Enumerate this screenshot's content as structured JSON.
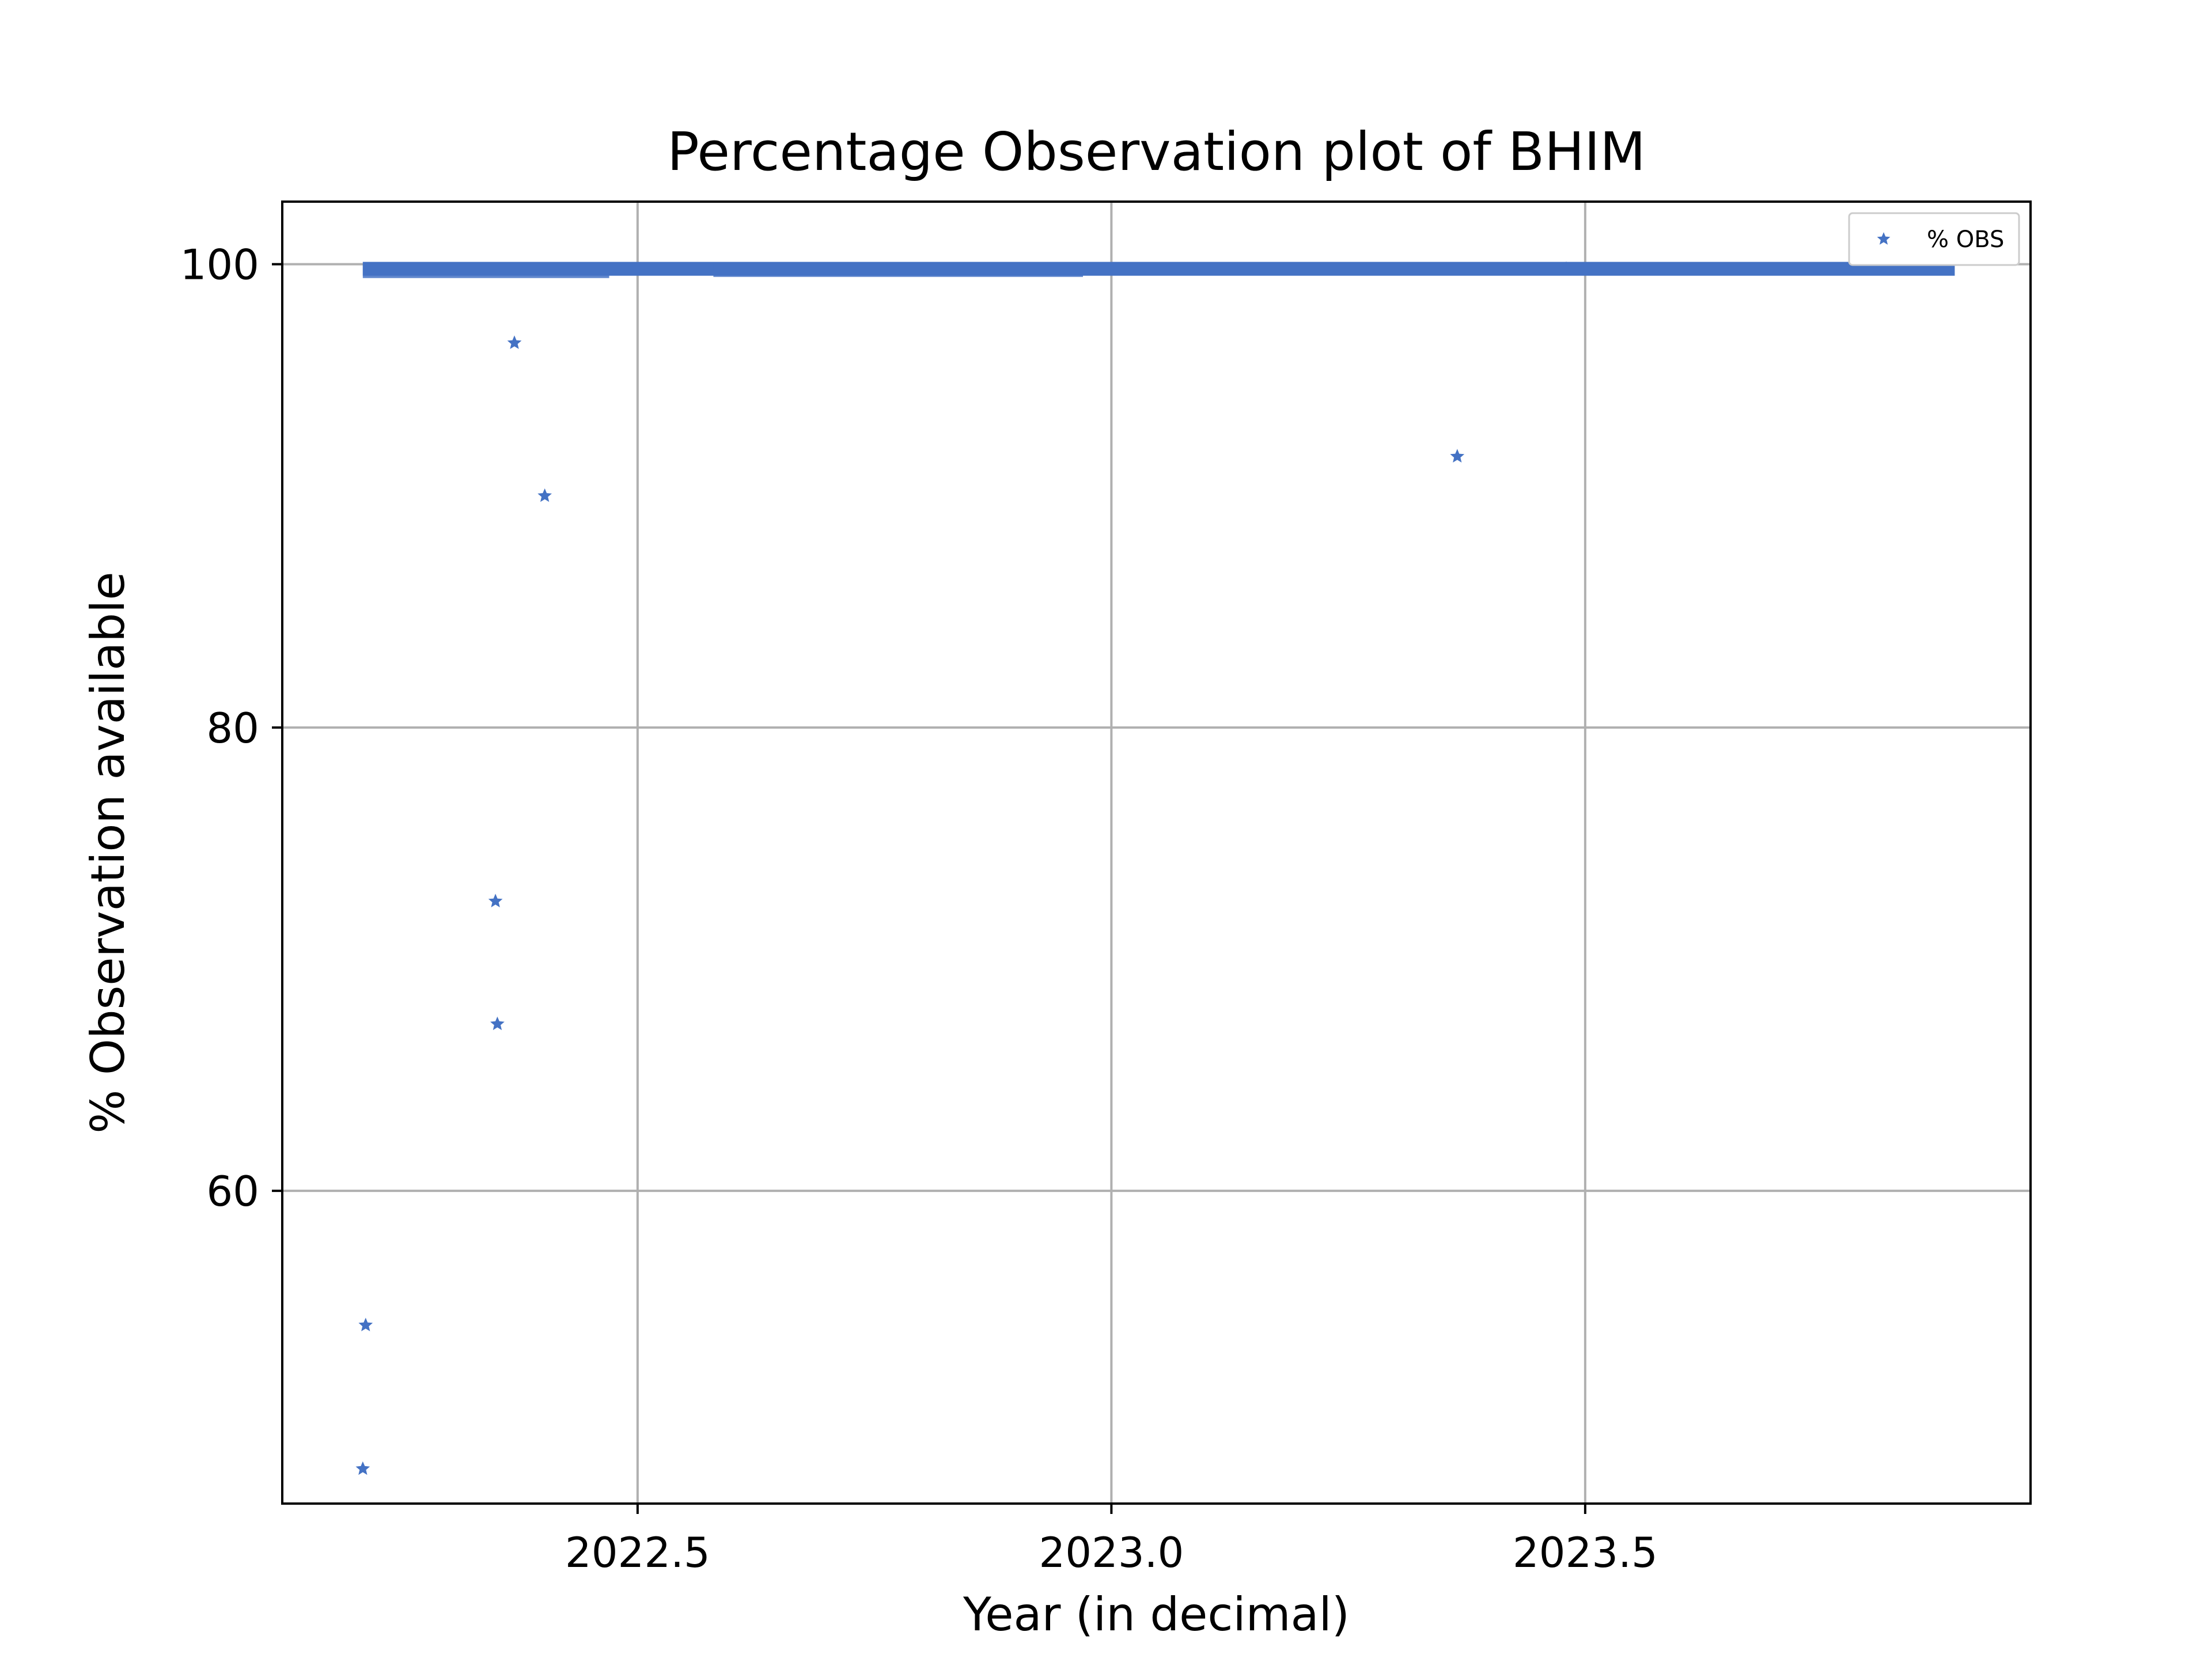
{
  "chart_data": {
    "type": "scatter",
    "title": "Percentage Observation plot of BHIM",
    "xlabel": "Year (in decimal)",
    "ylabel": "% Observation available",
    "xlim": [
      2022.125,
      2023.97
    ],
    "ylim": [
      46.5,
      102.7
    ],
    "xticks": [
      2022.5,
      2023.0,
      2023.5
    ],
    "xtick_labels": [
      "2022.5",
      "2023.0",
      "2023.5"
    ],
    "yticks": [
      60,
      80,
      100
    ],
    "ytick_labels": [
      "60",
      "80",
      "100"
    ],
    "grid": true,
    "legend": {
      "position": "top-right",
      "entries": [
        "% OBS"
      ]
    },
    "colors": {
      "series": "#4472c4",
      "grid": "#b0b0b0",
      "axes": "#000000"
    },
    "marker": "star",
    "series": [
      {
        "name": "% OBS",
        "dense_band": {
          "x_range": [
            2022.21,
            2023.89
          ],
          "y_range": [
            99.6,
            100.0
          ],
          "note_values": "near-100% daily observations"
        },
        "points": [
          {
            "x": 2022.21,
            "y": 48.0
          },
          {
            "x": 2022.213,
            "y": 54.2
          },
          {
            "x": 2022.35,
            "y": 72.5
          },
          {
            "x": 2022.352,
            "y": 67.2
          },
          {
            "x": 2022.37,
            "y": 96.6
          },
          {
            "x": 2022.402,
            "y": 90.0
          },
          {
            "x": 2023.365,
            "y": 91.7
          },
          {
            "x": 2023.48,
            "y": 99.8
          },
          {
            "x": 2023.82,
            "y": 99.9
          }
        ]
      }
    ]
  }
}
